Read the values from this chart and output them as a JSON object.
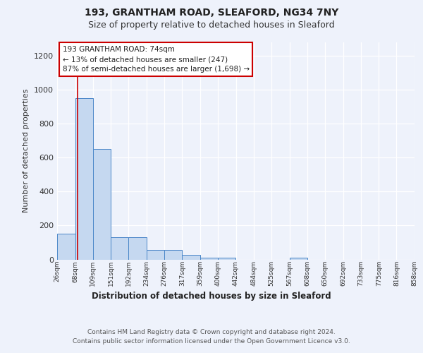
{
  "title1": "193, GRANTHAM ROAD, SLEAFORD, NG34 7NY",
  "title2": "Size of property relative to detached houses in Sleaford",
  "xlabel": "Distribution of detached houses by size in Sleaford",
  "ylabel": "Number of detached properties",
  "footnote": "Contains HM Land Registry data © Crown copyright and database right 2024.\nContains public sector information licensed under the Open Government Licence v3.0.",
  "bin_labels": [
    "26sqm",
    "68sqm",
    "109sqm",
    "151sqm",
    "192sqm",
    "234sqm",
    "276sqm",
    "317sqm",
    "359sqm",
    "400sqm",
    "442sqm",
    "484sqm",
    "525sqm",
    "567sqm",
    "608sqm",
    "650sqm",
    "692sqm",
    "733sqm",
    "775sqm",
    "816sqm",
    "858sqm"
  ],
  "bin_edges": [
    26,
    68,
    109,
    151,
    192,
    234,
    276,
    317,
    359,
    400,
    442,
    484,
    525,
    567,
    608,
    650,
    692,
    733,
    775,
    816,
    858
  ],
  "bar_heights": [
    150,
    950,
    650,
    130,
    130,
    55,
    55,
    25,
    12,
    12,
    0,
    0,
    0,
    12,
    0,
    0,
    0,
    0,
    0,
    0,
    0
  ],
  "bar_color": "#c5d8f0",
  "bar_edge_color": "#4a86c8",
  "background_color": "#eef2fb",
  "grid_color": "#ffffff",
  "red_line_x": 74,
  "annotation_line1": "193 GRANTHAM ROAD: 74sqm",
  "annotation_line2": "← 13% of detached houses are smaller (247)",
  "annotation_line3": "87% of semi-detached houses are larger (1,698) →",
  "annotation_border_color": "#cc0000",
  "annotation_bg_color": "#ffffff",
  "ylim": [
    0,
    1280
  ],
  "yticks": [
    0,
    200,
    400,
    600,
    800,
    1000,
    1200
  ]
}
